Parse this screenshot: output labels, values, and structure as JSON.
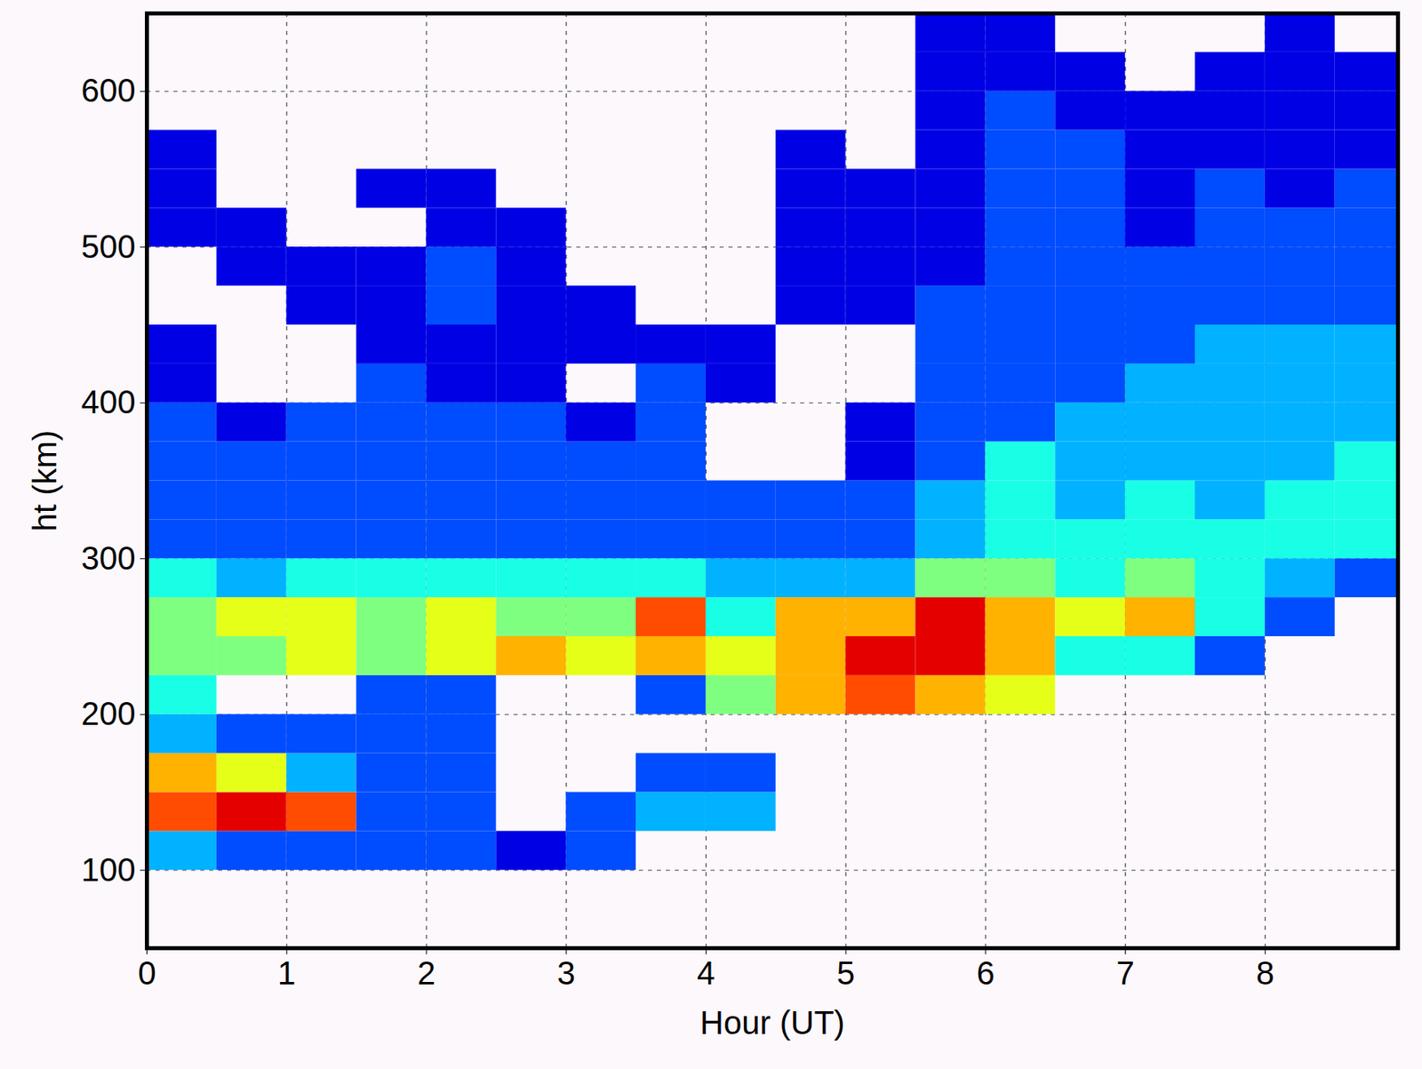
{
  "chart_data": {
    "type": "heatmap",
    "x_label": "Hour (UT)",
    "y_label": "ht (km)",
    "xlim": [
      0,
      8.95
    ],
    "ylim": [
      50,
      650
    ],
    "xticks": [
      0,
      1,
      2,
      3,
      4,
      5,
      6,
      7,
      8
    ],
    "yticks": [
      100,
      200,
      300,
      400,
      500,
      600
    ],
    "grid": true,
    "zlim": [
      0,
      10
    ],
    "x_bins": [
      0,
      0.5,
      1,
      1.5,
      2,
      2.5,
      3,
      3.5,
      4,
      4.5,
      5,
      5.5,
      6,
      6.5,
      7,
      7.5,
      8,
      8.5,
      9
    ],
    "y_bins": [
      100,
      125,
      150,
      175,
      200,
      225,
      250,
      275,
      300,
      325,
      350,
      375,
      400,
      425,
      450,
      475,
      500,
      525,
      550,
      575,
      600,
      625,
      650
    ],
    "values": [
      [
        3,
        2,
        2,
        2,
        2,
        1,
        2,
        null,
        null,
        null,
        null,
        null,
        null,
        null,
        null,
        null,
        null,
        null
      ],
      [
        8,
        9,
        8,
        2,
        2,
        null,
        2,
        3,
        3,
        null,
        null,
        null,
        null,
        null,
        null,
        null,
        null,
        null
      ],
      [
        7,
        6,
        3,
        2,
        2,
        null,
        null,
        2,
        2,
        null,
        null,
        null,
        null,
        null,
        null,
        null,
        null,
        null
      ],
      [
        3,
        2,
        2,
        2,
        2,
        null,
        null,
        null,
        null,
        null,
        null,
        null,
        null,
        null,
        null,
        null,
        null,
        null
      ],
      [
        4,
        null,
        null,
        2,
        2,
        null,
        null,
        2,
        5,
        7,
        8,
        7,
        6,
        null,
        null,
        null,
        null,
        null
      ],
      [
        5,
        5,
        6,
        5,
        6,
        7,
        6,
        7,
        6,
        7,
        9,
        9,
        7,
        4,
        4,
        2,
        null,
        null
      ],
      [
        5,
        6,
        6,
        5,
        6,
        5,
        5,
        8,
        4,
        7,
        7,
        9,
        7,
        6,
        7,
        4,
        2,
        null
      ],
      [
        4,
        3,
        4,
        4,
        4,
        4,
        4,
        4,
        3,
        3,
        3,
        5,
        5,
        4,
        5,
        4,
        3,
        2
      ],
      [
        2,
        2,
        2,
        2,
        2,
        2,
        2,
        2,
        2,
        2,
        2,
        3,
        4,
        4,
        4,
        4,
        4,
        4
      ],
      [
        2,
        2,
        2,
        2,
        2,
        2,
        2,
        2,
        2,
        2,
        2,
        3,
        4,
        3,
        4,
        3,
        4,
        4
      ],
      [
        2,
        2,
        2,
        2,
        2,
        2,
        2,
        2,
        null,
        null,
        1,
        2,
        4,
        3,
        3,
        3,
        3,
        4
      ],
      [
        2,
        1,
        2,
        2,
        2,
        2,
        1,
        2,
        null,
        null,
        1,
        2,
        2,
        3,
        3,
        3,
        3,
        3
      ],
      [
        1,
        null,
        null,
        2,
        1,
        1,
        null,
        2,
        1,
        null,
        null,
        2,
        2,
        2,
        3,
        3,
        3,
        3
      ],
      [
        1,
        null,
        null,
        1,
        1,
        1,
        1,
        1,
        1,
        null,
        null,
        2,
        2,
        2,
        2,
        3,
        3,
        3
      ],
      [
        null,
        null,
        1,
        1,
        2,
        1,
        1,
        null,
        null,
        1,
        1,
        2,
        2,
        2,
        2,
        2,
        2,
        2
      ],
      [
        null,
        1,
        1,
        1,
        2,
        1,
        null,
        null,
        null,
        1,
        1,
        1,
        2,
        2,
        2,
        2,
        2,
        2
      ],
      [
        1,
        1,
        null,
        null,
        1,
        1,
        null,
        null,
        null,
        1,
        1,
        1,
        2,
        2,
        1,
        2,
        2,
        2
      ],
      [
        1,
        null,
        null,
        1,
        1,
        null,
        null,
        null,
        null,
        1,
        1,
        1,
        2,
        2,
        1,
        2,
        1,
        2
      ],
      [
        1,
        null,
        null,
        null,
        null,
        null,
        null,
        null,
        null,
        1,
        null,
        1,
        2,
        2,
        1,
        1,
        1,
        1
      ],
      [
        null,
        null,
        null,
        null,
        null,
        null,
        null,
        null,
        null,
        null,
        null,
        1,
        2,
        1,
        1,
        1,
        1,
        1
      ],
      [
        null,
        null,
        null,
        null,
        null,
        null,
        null,
        null,
        null,
        null,
        null,
        1,
        1,
        1,
        null,
        1,
        1,
        1
      ],
      [
        null,
        null,
        null,
        null,
        null,
        null,
        null,
        null,
        null,
        null,
        null,
        1,
        1,
        null,
        null,
        null,
        1,
        null
      ]
    ]
  }
}
